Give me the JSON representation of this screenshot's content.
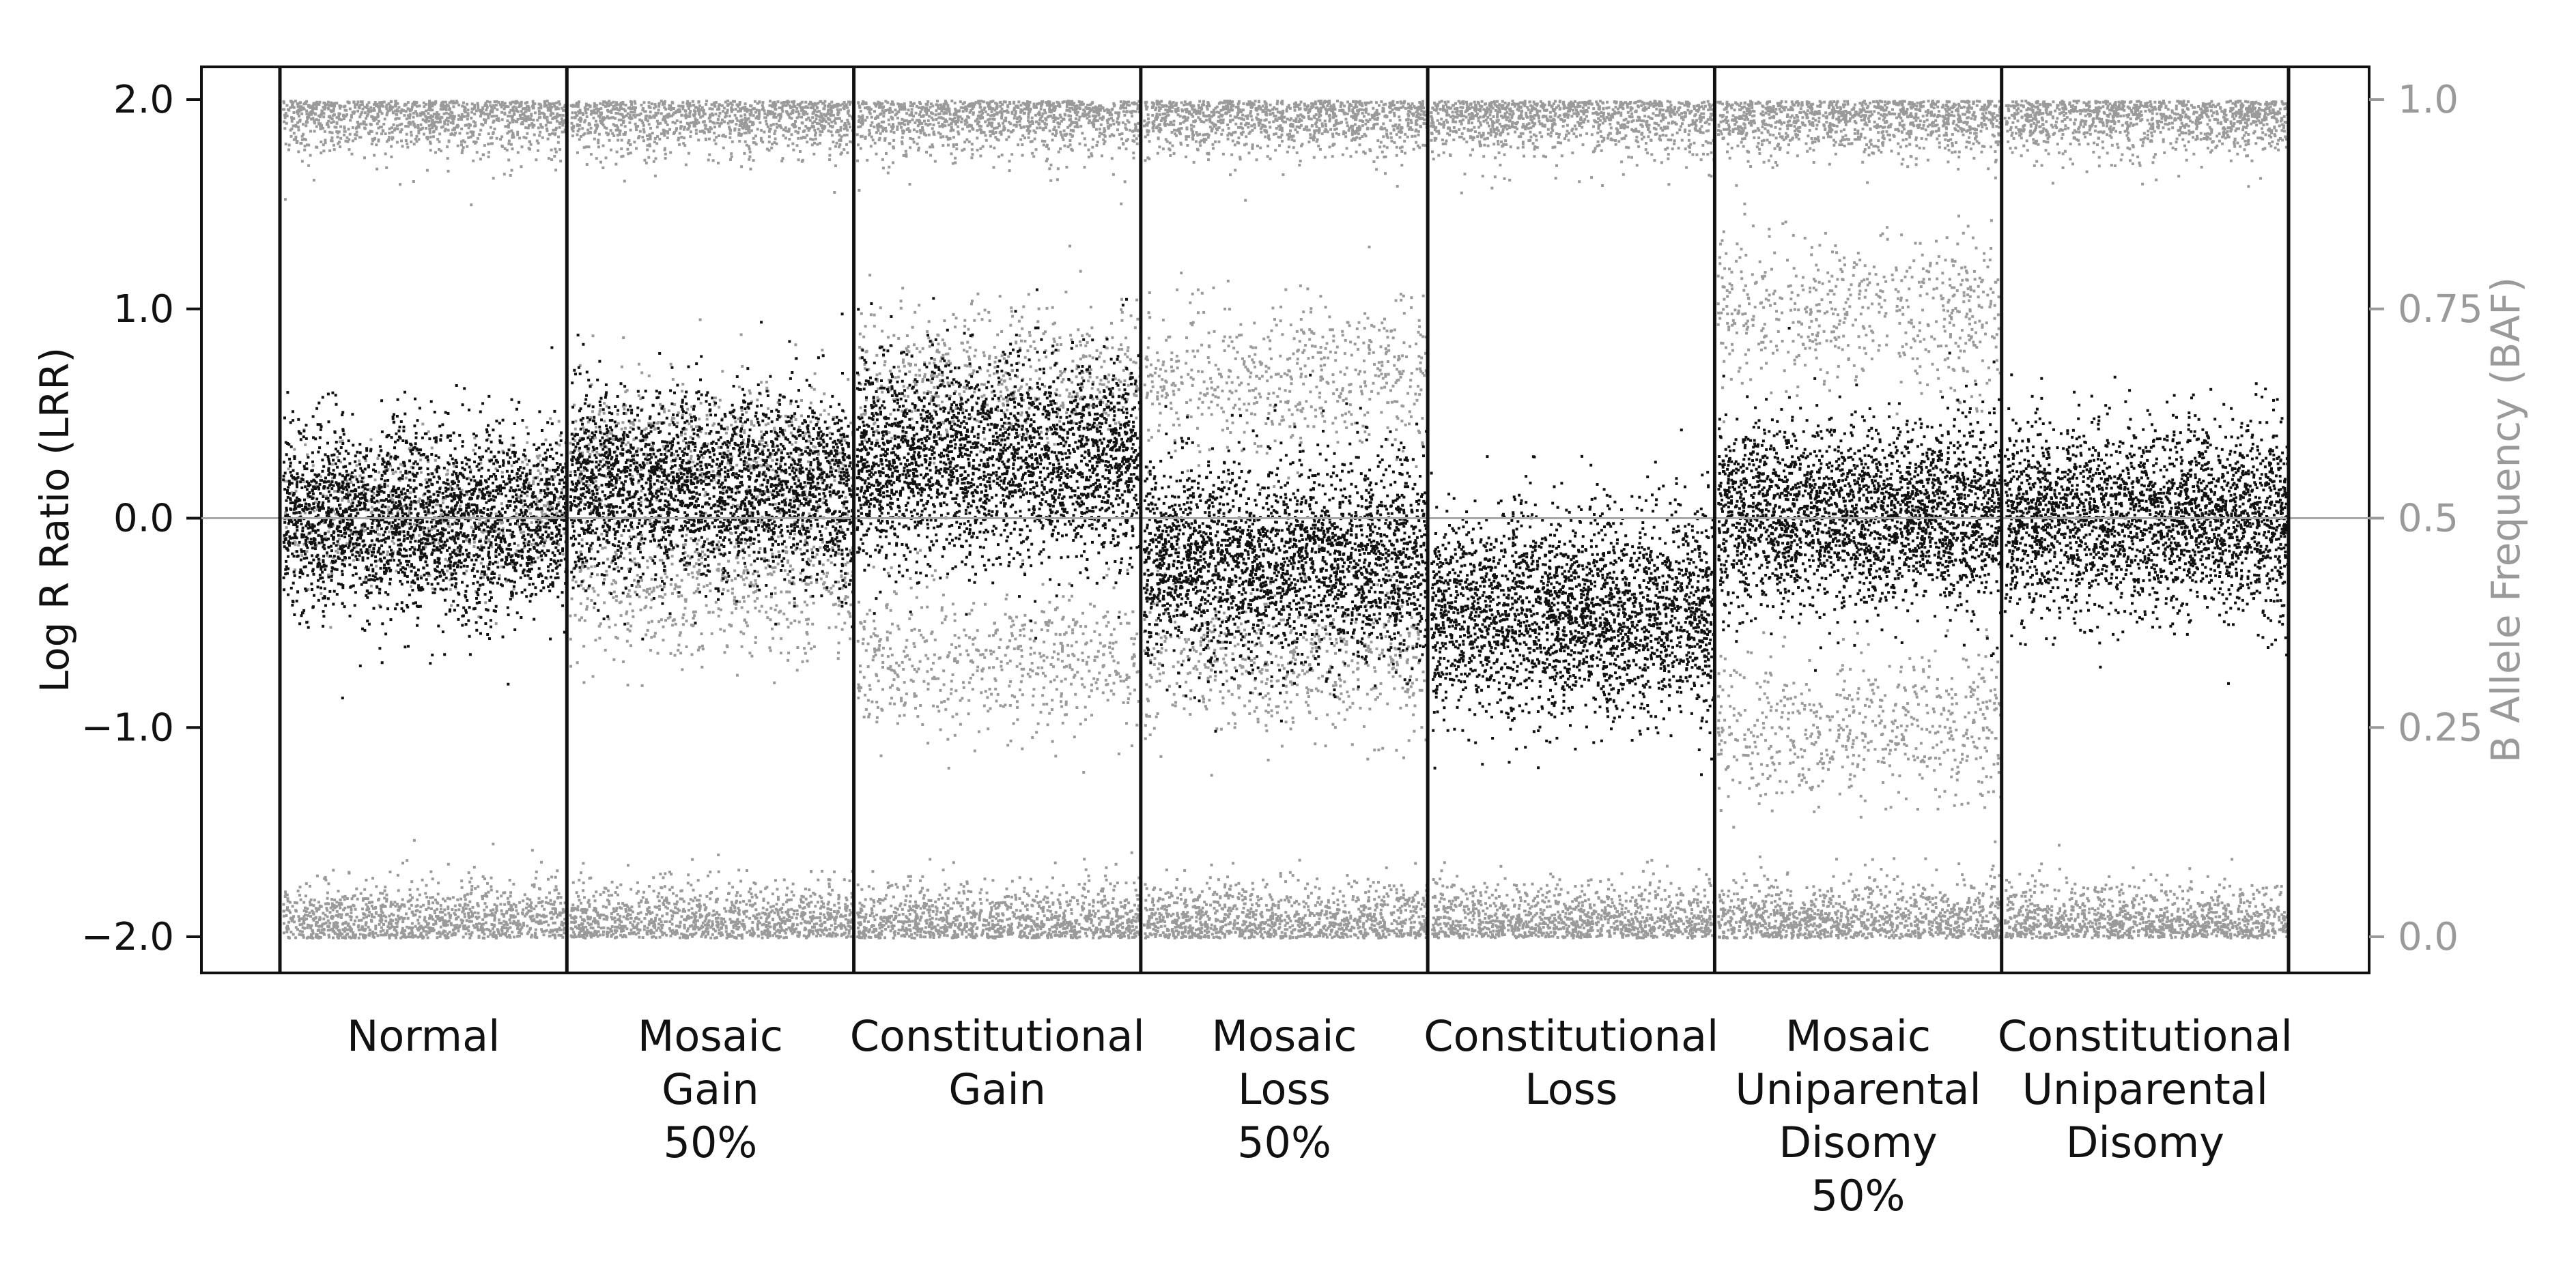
{
  "chart_data": {
    "type": "scatter",
    "title": "",
    "y_left": {
      "label": "Log R Ratio (LRR)",
      "ylim": [
        -2.0,
        2.0
      ],
      "ticks": [
        2.0,
        1.0,
        0.0,
        -1.0,
        -2.0
      ],
      "tick_labels": [
        "2.0",
        "1.0",
        "0.0",
        "−1.0",
        "−2.0"
      ]
    },
    "y_right": {
      "label": "B Allele Frequency (BAF)",
      "ylim": [
        0.0,
        1.0
      ],
      "ticks": [
        1.0,
        0.75,
        0.5,
        0.25,
        0.0
      ],
      "tick_labels": [
        "1.0",
        "0.75",
        "0.5",
        "0.25",
        "0.0"
      ]
    },
    "reference_line": {
      "axis": "y_left",
      "value": 0.0
    },
    "series_colors": {
      "LRR": "#111111",
      "BAF": "#9a9a9a"
    },
    "panels": [
      {
        "label_lines": [
          "Normal"
        ],
        "lrr_center": 0.0,
        "lrr_spread": 0.22,
        "baf_bands": [
          0.0,
          0.5,
          1.0
        ]
      },
      {
        "label_lines": [
          "Mosaic",
          "Gain",
          "50%"
        ],
        "lrr_center": 0.15,
        "lrr_spread": 0.22,
        "baf_bands": [
          0.0,
          0.42,
          0.58,
          1.0
        ]
      },
      {
        "label_lines": [
          "Constitutional",
          "Gain"
        ],
        "lrr_center": 0.28,
        "lrr_spread": 0.24,
        "baf_bands": [
          0.0,
          0.33,
          0.67,
          1.0
        ]
      },
      {
        "label_lines": [
          "Mosaic",
          "Loss",
          "50%"
        ],
        "lrr_center": -0.2,
        "lrr_spread": 0.24,
        "baf_bands": [
          0.0,
          0.33,
          0.67,
          1.0
        ]
      },
      {
        "label_lines": [
          "Constitutional",
          "Loss"
        ],
        "lrr_center": -0.45,
        "lrr_spread": 0.24,
        "baf_bands": [
          0.0,
          1.0
        ]
      },
      {
        "label_lines": [
          "Mosaic",
          "Uniparental",
          "Disomy",
          "50%"
        ],
        "lrr_center": 0.02,
        "lrr_spread": 0.22,
        "baf_bands": [
          0.0,
          0.25,
          0.75,
          1.0
        ]
      },
      {
        "label_lines": [
          "Constitutional",
          "Uniparental",
          "Disomy"
        ],
        "lrr_center": 0.0,
        "lrr_spread": 0.22,
        "baf_bands": [
          0.0,
          1.0
        ]
      }
    ]
  }
}
